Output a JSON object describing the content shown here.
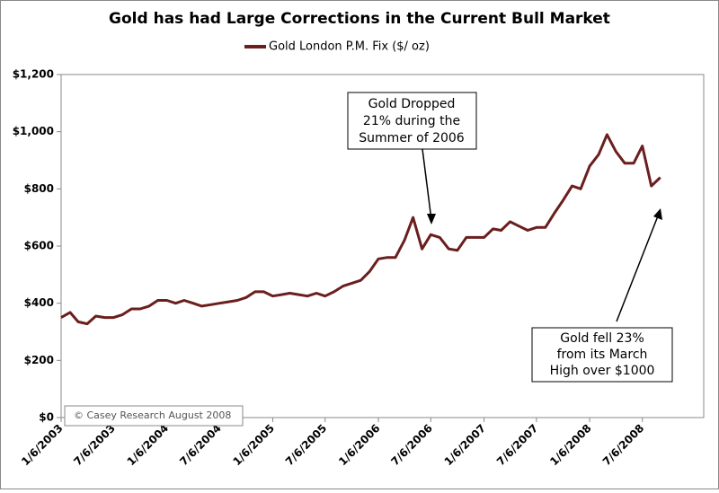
{
  "chart_data": {
    "type": "line",
    "title": "Gold has had Large Corrections in the Current Bull Market",
    "series": [
      {
        "name": "Gold London P.M. Fix ($/ oz)",
        "color": "#6b1e1e",
        "values": [
          350,
          368,
          335,
          328,
          355,
          350,
          350,
          360,
          380,
          380,
          390,
          410,
          410,
          400,
          410,
          400,
          390,
          395,
          400,
          405,
          410,
          420,
          440,
          440,
          425,
          430,
          435,
          430,
          425,
          435,
          425,
          440,
          460,
          470,
          480,
          510,
          555,
          560,
          560,
          620,
          700,
          590,
          640,
          630,
          590,
          585,
          630,
          630,
          630,
          660,
          655,
          685,
          670,
          655,
          665,
          665,
          715,
          760,
          810,
          800,
          880,
          920,
          990,
          930,
          890,
          890,
          950,
          810,
          840
        ]
      }
    ],
    "x": [
      "1/6/2003",
      "2/6/2003",
      "3/6/2003",
      "4/6/2003",
      "5/6/2003",
      "6/6/2003",
      "7/6/2003",
      "8/6/2003",
      "9/6/2003",
      "10/6/2003",
      "11/6/2003",
      "12/6/2003",
      "1/6/2004",
      "2/6/2004",
      "3/6/2004",
      "4/6/2004",
      "5/6/2004",
      "6/6/2004",
      "7/6/2004",
      "8/6/2004",
      "9/6/2004",
      "10/6/2004",
      "11/6/2004",
      "12/6/2004",
      "1/6/2005",
      "2/6/2005",
      "3/6/2005",
      "4/6/2005",
      "5/6/2005",
      "6/6/2005",
      "7/6/2005",
      "8/6/2005",
      "9/6/2005",
      "10/6/2005",
      "11/6/2005",
      "12/6/2005",
      "1/6/2006",
      "2/6/2006",
      "3/6/2006",
      "4/6/2006",
      "5/6/2006",
      "6/6/2006",
      "7/6/2006",
      "8/6/2006",
      "9/6/2006",
      "10/6/2006",
      "11/6/2006",
      "12/6/2006",
      "1/6/2007",
      "2/6/2007",
      "3/6/2007",
      "4/6/2007",
      "5/6/2007",
      "6/6/2007",
      "7/6/2007",
      "8/6/2007",
      "9/6/2007",
      "10/6/2007",
      "11/6/2007",
      "12/6/2007",
      "1/6/2008",
      "2/6/2008",
      "3/6/2008",
      "4/6/2008",
      "5/6/2008",
      "6/6/2008",
      "7/6/2008",
      "8/6/2008",
      "9/6/2008"
    ],
    "xlim": [
      "1/6/2003",
      "1/6/2009"
    ],
    "xticks": [
      "1/6/2003",
      "7/6/2003",
      "1/6/2004",
      "7/6/2004",
      "1/6/2005",
      "7/6/2005",
      "1/6/2006",
      "7/6/2006",
      "1/6/2007",
      "7/6/2007",
      "1/6/2008",
      "7/6/2008"
    ],
    "ylim": [
      0,
      1200
    ],
    "yticks": [
      {
        "value": 0,
        "label": "$0"
      },
      {
        "value": 200,
        "label": "$200"
      },
      {
        "value": 400,
        "label": "$400"
      },
      {
        "value": 600,
        "label": "$600"
      },
      {
        "value": 800,
        "label": "$800"
      },
      {
        "value": 1000,
        "label": "$1,000"
      },
      {
        "value": 1200,
        "label": "$1,200"
      }
    ],
    "annotations": [
      {
        "lines": [
          "Gold Dropped",
          "21% during the",
          "Summer of 2006"
        ]
      },
      {
        "lines": [
          "Gold fell 23%",
          "from its March",
          "High over $1000"
        ]
      },
      {
        "text": "© Casey Research August 2008"
      }
    ]
  }
}
